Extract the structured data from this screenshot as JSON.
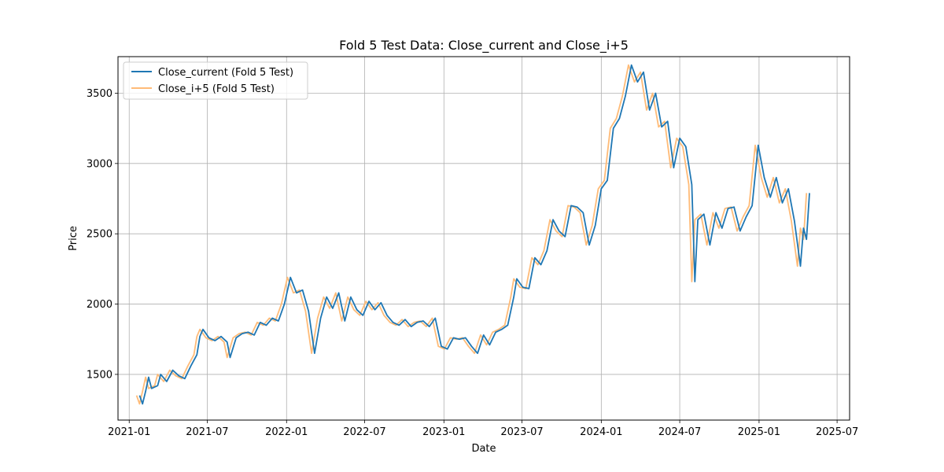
{
  "chart_data": {
    "type": "line",
    "title": "Fold 5 Test Data: Close_current and Close_i+5",
    "xlabel": "Date",
    "ylabel": "Price",
    "x_ticks": [
      "2021-01",
      "2021-07",
      "2022-01",
      "2022-07",
      "2023-01",
      "2023-07",
      "2024-01",
      "2024-07",
      "2025-01",
      "2025-07"
    ],
    "y_ticks": [
      1500,
      2000,
      2500,
      3000,
      3500
    ],
    "xlim": [
      "2020-12-06",
      "2025-07-30"
    ],
    "ylim": [
      1175,
      3760
    ],
    "grid": true,
    "legend_position": "top-left",
    "colors": {
      "current": "#1f77b4",
      "future": "#ffbb78"
    },
    "series": [
      {
        "name": "Close_current (Fold 5 Test)",
        "key": "current",
        "points": [
          [
            "2021-01-25",
            1350
          ],
          [
            "2021-02-01",
            1290
          ],
          [
            "2021-02-08",
            1380
          ],
          [
            "2021-02-15",
            1480
          ],
          [
            "2021-02-22",
            1400
          ],
          [
            "2021-03-08",
            1420
          ],
          [
            "2021-03-15",
            1500
          ],
          [
            "2021-03-29",
            1450
          ],
          [
            "2021-04-12",
            1530
          ],
          [
            "2021-04-26",
            1490
          ],
          [
            "2021-05-10",
            1470
          ],
          [
            "2021-05-24",
            1560
          ],
          [
            "2021-06-07",
            1640
          ],
          [
            "2021-06-14",
            1770
          ],
          [
            "2021-06-21",
            1820
          ],
          [
            "2021-07-05",
            1760
          ],
          [
            "2021-07-19",
            1740
          ],
          [
            "2021-08-02",
            1770
          ],
          [
            "2021-08-16",
            1730
          ],
          [
            "2021-08-23",
            1620
          ],
          [
            "2021-09-06",
            1760
          ],
          [
            "2021-09-20",
            1790
          ],
          [
            "2021-10-04",
            1800
          ],
          [
            "2021-10-18",
            1780
          ],
          [
            "2021-11-01",
            1870
          ],
          [
            "2021-11-15",
            1850
          ],
          [
            "2021-11-29",
            1900
          ],
          [
            "2021-12-13",
            1880
          ],
          [
            "2021-12-27",
            2000
          ],
          [
            "2022-01-10",
            2190
          ],
          [
            "2022-01-24",
            2080
          ],
          [
            "2022-02-07",
            2100
          ],
          [
            "2022-02-21",
            1950
          ],
          [
            "2022-03-07",
            1650
          ],
          [
            "2022-03-21",
            1900
          ],
          [
            "2022-04-04",
            2050
          ],
          [
            "2022-04-18",
            1970
          ],
          [
            "2022-05-02",
            2080
          ],
          [
            "2022-05-16",
            1880
          ],
          [
            "2022-05-30",
            2050
          ],
          [
            "2022-06-13",
            1960
          ],
          [
            "2022-06-27",
            1920
          ],
          [
            "2022-07-11",
            2020
          ],
          [
            "2022-07-25",
            1960
          ],
          [
            "2022-08-08",
            2010
          ],
          [
            "2022-08-22",
            1920
          ],
          [
            "2022-09-05",
            1870
          ],
          [
            "2022-09-19",
            1850
          ],
          [
            "2022-10-03",
            1890
          ],
          [
            "2022-10-17",
            1840
          ],
          [
            "2022-10-31",
            1870
          ],
          [
            "2022-11-14",
            1880
          ],
          [
            "2022-11-28",
            1840
          ],
          [
            "2022-12-12",
            1900
          ],
          [
            "2022-12-26",
            1700
          ],
          [
            "2023-01-09",
            1680
          ],
          [
            "2023-01-23",
            1760
          ],
          [
            "2023-02-06",
            1750
          ],
          [
            "2023-02-20",
            1760
          ],
          [
            "2023-03-06",
            1700
          ],
          [
            "2023-03-20",
            1650
          ],
          [
            "2023-04-03",
            1780
          ],
          [
            "2023-04-17",
            1710
          ],
          [
            "2023-05-01",
            1800
          ],
          [
            "2023-05-15",
            1820
          ],
          [
            "2023-05-29",
            1850
          ],
          [
            "2023-06-12",
            2050
          ],
          [
            "2023-06-19",
            2180
          ],
          [
            "2023-07-03",
            2120
          ],
          [
            "2023-07-17",
            2110
          ],
          [
            "2023-07-31",
            2330
          ],
          [
            "2023-08-14",
            2280
          ],
          [
            "2023-08-28",
            2380
          ],
          [
            "2023-09-11",
            2600
          ],
          [
            "2023-09-25",
            2520
          ],
          [
            "2023-10-09",
            2480
          ],
          [
            "2023-10-23",
            2700
          ],
          [
            "2023-11-06",
            2690
          ],
          [
            "2023-11-20",
            2650
          ],
          [
            "2023-12-04",
            2420
          ],
          [
            "2023-12-18",
            2560
          ],
          [
            "2024-01-01",
            2820
          ],
          [
            "2024-01-15",
            2880
          ],
          [
            "2024-01-29",
            3250
          ],
          [
            "2024-02-12",
            3320
          ],
          [
            "2024-02-26",
            3480
          ],
          [
            "2024-03-11",
            3700
          ],
          [
            "2024-03-25",
            3580
          ],
          [
            "2024-04-08",
            3650
          ],
          [
            "2024-04-22",
            3380
          ],
          [
            "2024-05-06",
            3500
          ],
          [
            "2024-05-20",
            3260
          ],
          [
            "2024-06-03",
            3300
          ],
          [
            "2024-06-17",
            2970
          ],
          [
            "2024-07-01",
            3180
          ],
          [
            "2024-07-15",
            3120
          ],
          [
            "2024-07-29",
            2850
          ],
          [
            "2024-08-05",
            2160
          ],
          [
            "2024-08-12",
            2600
          ],
          [
            "2024-08-26",
            2640
          ],
          [
            "2024-09-09",
            2420
          ],
          [
            "2024-09-23",
            2650
          ],
          [
            "2024-10-07",
            2540
          ],
          [
            "2024-10-21",
            2680
          ],
          [
            "2024-11-04",
            2690
          ],
          [
            "2024-11-18",
            2520
          ],
          [
            "2024-12-02",
            2620
          ],
          [
            "2024-12-16",
            2700
          ],
          [
            "2024-12-30",
            3130
          ],
          [
            "2025-01-13",
            2900
          ],
          [
            "2025-01-27",
            2760
          ],
          [
            "2025-02-10",
            2900
          ],
          [
            "2025-02-24",
            2720
          ],
          [
            "2025-03-10",
            2820
          ],
          [
            "2025-03-24",
            2590
          ],
          [
            "2025-04-07",
            2270
          ],
          [
            "2025-04-14",
            2540
          ],
          [
            "2025-04-21",
            2460
          ],
          [
            "2025-04-28",
            2790
          ]
        ]
      },
      {
        "name": "Close_i+5 (Fold 5 Test)",
        "key": "future",
        "shift_days": -7,
        "note_hidden": false
      }
    ]
  }
}
